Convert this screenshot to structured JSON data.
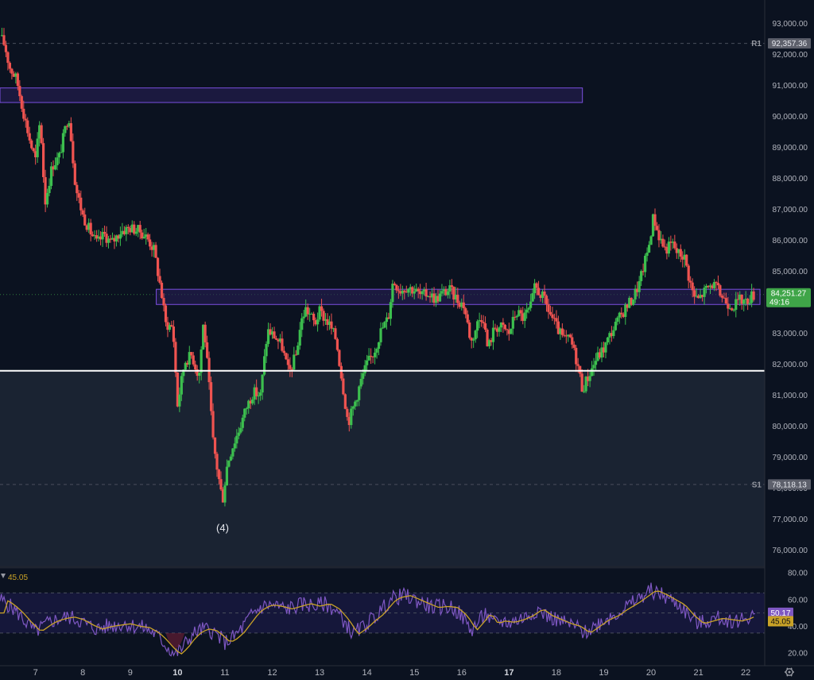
{
  "colors": {
    "background": "#0b1220",
    "demand_zone": "#1a2332",
    "up_candle": "#26a69a",
    "up_candle_bright": "#3cbf4e",
    "down_candle": "#ef5350",
    "zone_border": "#7b4fe0",
    "zone_fill": "#2a1f5a",
    "support_line": "#ffffff",
    "rsi_line": "#7e57c2",
    "rsi_ma": "#c9a227",
    "rsi_band": "#15173a",
    "grid": "#2a2e39",
    "price_tag_bg": "#3fa548",
    "level_tag_bg": "#5d606b"
  },
  "price_axis": {
    "labels": [
      "93,000.00",
      "92,000.00",
      "91,000.00",
      "90,000.00",
      "89,000.00",
      "88,000.00",
      "87,000.00",
      "86,000.00",
      "85,000.00",
      "84,000.00",
      "83,000.00",
      "82,000.00",
      "81,000.00",
      "80,000.00",
      "79,000.00",
      "78,000.00",
      "77,000.00",
      "76,000.00"
    ]
  },
  "rsi_axis": {
    "labels": [
      "80.00",
      "60.00",
      "40.00",
      "20.00"
    ]
  },
  "time_axis": {
    "labels": [
      "7",
      "8",
      "9",
      "10",
      "11",
      "12",
      "13",
      "14",
      "15",
      "16",
      "17",
      "18",
      "19",
      "20",
      "21",
      "22"
    ],
    "bold": [
      "10",
      "17"
    ],
    "settings_icon": "gear-icon"
  },
  "levels": {
    "r1": {
      "label": "R1",
      "value": "92,357.36"
    },
    "s1": {
      "label": "S1",
      "value": "78,118.13"
    }
  },
  "current_price": {
    "value": "84,251.27",
    "countdown": "49:16"
  },
  "wave_label": "(4)",
  "rsi": {
    "value": "45.05",
    "rsi_tag": "50.17",
    "ma_tag": "45.05",
    "icon": "triangle-down-icon"
  },
  "chart_data": {
    "type": "candlestick",
    "y_range": [
      75500,
      93400
    ],
    "rsi_range": [
      13,
      83
    ],
    "x_range": [
      6.25,
      22.4
    ],
    "overbought": 65,
    "oversold": 35,
    "zones": [
      {
        "name": "resistance-zone",
        "x0": 6.25,
        "x1": 18.55,
        "y0": 90450,
        "y1": 90920
      },
      {
        "name": "pivot-zone",
        "x0": 9.55,
        "x1": 22.3,
        "y0": 83930,
        "y1": 84420
      }
    ],
    "support_line": 81790,
    "demand_zone": [
      75450,
      81790
    ],
    "close_path": [
      [
        6.25,
        92600
      ],
      [
        6.35,
        92300
      ],
      [
        6.45,
        91600
      ],
      [
        6.6,
        91200
      ],
      [
        6.75,
        90100
      ],
      [
        6.9,
        89100
      ],
      [
        7.0,
        88600
      ],
      [
        7.1,
        89900
      ],
      [
        7.2,
        87200
      ],
      [
        7.35,
        88400
      ],
      [
        7.5,
        88700
      ],
      [
        7.6,
        89400
      ],
      [
        7.7,
        90100
      ],
      [
        7.85,
        87700
      ],
      [
        8.0,
        86800
      ],
      [
        8.15,
        86300
      ],
      [
        8.3,
        85900
      ],
      [
        8.45,
        86200
      ],
      [
        8.6,
        85900
      ],
      [
        8.8,
        86300
      ],
      [
        9.0,
        86400
      ],
      [
        9.2,
        86300
      ],
      [
        9.35,
        86100
      ],
      [
        9.5,
        85700
      ],
      [
        9.65,
        84400
      ],
      [
        9.75,
        83300
      ],
      [
        9.9,
        83200
      ],
      [
        10.0,
        80700
      ],
      [
        10.15,
        82100
      ],
      [
        10.3,
        82300
      ],
      [
        10.45,
        81600
      ],
      [
        10.55,
        83400
      ],
      [
        10.65,
        81600
      ],
      [
        10.75,
        79500
      ],
      [
        10.85,
        78500
      ],
      [
        10.95,
        77600
      ],
      [
        11.05,
        78800
      ],
      [
        11.15,
        79300
      ],
      [
        11.3,
        79900
      ],
      [
        11.45,
        80600
      ],
      [
        11.6,
        81100
      ],
      [
        11.75,
        81000
      ],
      [
        11.9,
        83100
      ],
      [
        12.05,
        82900
      ],
      [
        12.2,
        82600
      ],
      [
        12.35,
        81700
      ],
      [
        12.5,
        82300
      ],
      [
        12.6,
        83300
      ],
      [
        12.7,
        83800
      ],
      [
        12.8,
        83600
      ],
      [
        12.9,
        83300
      ],
      [
        13.0,
        83700
      ],
      [
        13.1,
        83500
      ],
      [
        13.2,
        83300
      ],
      [
        13.35,
        82800
      ],
      [
        13.5,
        81200
      ],
      [
        13.6,
        80100
      ],
      [
        13.75,
        80800
      ],
      [
        13.9,
        81600
      ],
      [
        14.0,
        82000
      ],
      [
        14.15,
        82400
      ],
      [
        14.3,
        83100
      ],
      [
        14.45,
        83500
      ],
      [
        14.55,
        84700
      ],
      [
        14.7,
        84400
      ],
      [
        14.85,
        84500
      ],
      [
        15.0,
        84400
      ],
      [
        15.15,
        84200
      ],
      [
        15.3,
        84300
      ],
      [
        15.45,
        84100
      ],
      [
        15.6,
        84300
      ],
      [
        15.75,
        84400
      ],
      [
        15.9,
        84100
      ],
      [
        16.05,
        83900
      ],
      [
        16.2,
        82700
      ],
      [
        16.35,
        83400
      ],
      [
        16.45,
        83600
      ],
      [
        16.55,
        82500
      ],
      [
        16.7,
        83200
      ],
      [
        16.85,
        83200
      ],
      [
        17.0,
        83000
      ],
      [
        17.15,
        83700
      ],
      [
        17.3,
        83500
      ],
      [
        17.45,
        83800
      ],
      [
        17.55,
        84500
      ],
      [
        17.7,
        84200
      ],
      [
        17.85,
        83700
      ],
      [
        18.0,
        83200
      ],
      [
        18.15,
        82800
      ],
      [
        18.3,
        82800
      ],
      [
        18.45,
        82000
      ],
      [
        18.55,
        81200
      ],
      [
        18.7,
        81700
      ],
      [
        18.85,
        82200
      ],
      [
        19.0,
        82500
      ],
      [
        19.15,
        83000
      ],
      [
        19.3,
        83400
      ],
      [
        19.45,
        83800
      ],
      [
        19.6,
        84100
      ],
      [
        19.75,
        84600
      ],
      [
        19.85,
        85200
      ],
      [
        19.95,
        85800
      ],
      [
        20.05,
        86800
      ],
      [
        20.15,
        86200
      ],
      [
        20.3,
        85700
      ],
      [
        20.45,
        85900
      ],
      [
        20.55,
        85600
      ],
      [
        20.7,
        85500
      ],
      [
        20.8,
        84800
      ],
      [
        20.9,
        84200
      ],
      [
        21.0,
        84100
      ],
      [
        21.15,
        84400
      ],
      [
        21.3,
        84600
      ],
      [
        21.45,
        84300
      ],
      [
        21.6,
        84000
      ],
      [
        21.75,
        83900
      ],
      [
        21.9,
        84100
      ],
      [
        22.0,
        84000
      ],
      [
        22.1,
        84200
      ],
      [
        22.2,
        84251
      ]
    ],
    "rsi_path": [
      [
        6.25,
        60
      ],
      [
        6.4,
        57
      ],
      [
        6.6,
        51
      ],
      [
        6.8,
        43
      ],
      [
        7.0,
        36
      ],
      [
        7.2,
        41
      ],
      [
        7.35,
        44
      ],
      [
        7.55,
        46
      ],
      [
        7.7,
        47
      ],
      [
        7.9,
        45
      ],
      [
        8.1,
        41
      ],
      [
        8.3,
        38
      ],
      [
        8.5,
        40
      ],
      [
        8.7,
        41
      ],
      [
        8.9,
        42
      ],
      [
        9.1,
        40
      ],
      [
        9.3,
        39
      ],
      [
        9.5,
        35
      ],
      [
        9.65,
        30
      ],
      [
        9.8,
        24
      ],
      [
        9.95,
        19
      ],
      [
        10.1,
        24
      ],
      [
        10.25,
        31
      ],
      [
        10.4,
        36
      ],
      [
        10.55,
        38
      ],
      [
        10.7,
        37
      ],
      [
        10.85,
        33
      ],
      [
        11.0,
        28
      ],
      [
        11.15,
        31
      ],
      [
        11.3,
        36
      ],
      [
        11.45,
        43
      ],
      [
        11.6,
        50
      ],
      [
        11.75,
        54
      ],
      [
        11.9,
        56
      ],
      [
        12.1,
        55
      ],
      [
        12.3,
        53
      ],
      [
        12.5,
        55
      ],
      [
        12.7,
        57
      ],
      [
        12.9,
        55
      ],
      [
        13.1,
        57
      ],
      [
        13.3,
        53
      ],
      [
        13.5,
        45
      ],
      [
        13.7,
        34
      ],
      [
        13.9,
        39
      ],
      [
        14.05,
        44
      ],
      [
        14.2,
        48
      ],
      [
        14.35,
        54
      ],
      [
        14.5,
        60
      ],
      [
        14.65,
        62
      ],
      [
        14.8,
        63
      ],
      [
        15.0,
        60
      ],
      [
        15.2,
        57
      ],
      [
        15.4,
        54
      ],
      [
        15.6,
        55
      ],
      [
        15.8,
        54
      ],
      [
        16.0,
        48
      ],
      [
        16.2,
        37
      ],
      [
        16.35,
        43
      ],
      [
        16.5,
        50
      ],
      [
        16.65,
        42
      ],
      [
        16.8,
        44
      ],
      [
        17.0,
        43
      ],
      [
        17.2,
        45
      ],
      [
        17.4,
        48
      ],
      [
        17.6,
        53
      ],
      [
        17.8,
        48
      ],
      [
        18.0,
        45
      ],
      [
        18.2,
        42
      ],
      [
        18.4,
        40
      ],
      [
        18.6,
        35
      ],
      [
        18.8,
        40
      ],
      [
        19.0,
        45
      ],
      [
        19.2,
        48
      ],
      [
        19.4,
        53
      ],
      [
        19.6,
        57
      ],
      [
        19.8,
        62
      ],
      [
        20.0,
        67
      ],
      [
        20.2,
        64
      ],
      [
        20.4,
        60
      ],
      [
        20.6,
        56
      ],
      [
        20.8,
        48
      ],
      [
        21.0,
        42
      ],
      [
        21.2,
        44
      ],
      [
        21.4,
        46
      ],
      [
        21.6,
        45
      ],
      [
        21.8,
        44
      ],
      [
        22.0,
        46
      ],
      [
        22.2,
        50
      ]
    ]
  }
}
